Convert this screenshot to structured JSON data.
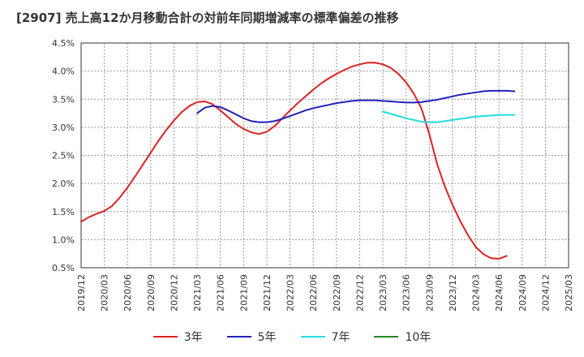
{
  "chart_data": {
    "type": "line",
    "title": "[2907]  売上高12か月移動合計の対前年同期増減率の標準偏差の推移",
    "xlabel": "",
    "ylabel": "",
    "ylim": [
      0.5,
      4.5
    ],
    "y_ticks": [
      "0.5%",
      "1.0%",
      "1.5%",
      "2.0%",
      "2.5%",
      "3.0%",
      "3.5%",
      "4.0%",
      "4.5%"
    ],
    "y_tick_values": [
      0.5,
      1.0,
      1.5,
      2.0,
      2.5,
      3.0,
      3.5,
      4.0,
      4.5
    ],
    "x_ticks": [
      "2019/12",
      "2020/03",
      "2020/06",
      "2020/09",
      "2020/12",
      "2021/03",
      "2021/06",
      "2021/09",
      "2021/12",
      "2022/03",
      "2022/06",
      "2022/09",
      "2022/12",
      "2023/03",
      "2023/06",
      "2023/09",
      "2023/12",
      "2024/03",
      "2024/06",
      "2024/09",
      "2024/12",
      "2025/03"
    ],
    "grid": true,
    "legend_position": "bottom",
    "series": [
      {
        "name": "3年",
        "color": "#dd2222",
        "x_start_month": 0,
        "values": [
          1.32,
          1.4,
          1.46,
          1.51,
          1.6,
          1.75,
          1.93,
          2.13,
          2.34,
          2.55,
          2.76,
          2.95,
          3.12,
          3.27,
          3.38,
          3.45,
          3.46,
          3.41,
          3.3,
          3.18,
          3.06,
          2.97,
          2.91,
          2.88,
          2.92,
          3.02,
          3.16,
          3.3,
          3.43,
          3.55,
          3.67,
          3.78,
          3.87,
          3.95,
          4.02,
          4.08,
          4.12,
          4.15,
          4.15,
          4.12,
          4.06,
          3.95,
          3.8,
          3.6,
          3.33,
          2.88,
          2.35,
          1.95,
          1.62,
          1.33,
          1.08,
          0.87,
          0.74,
          0.67,
          0.66,
          0.71
        ]
      },
      {
        "name": "5年",
        "color": "#2222bb",
        "x_start_month": 15,
        "values": [
          3.25,
          3.35,
          3.38,
          3.36,
          3.3,
          3.23,
          3.16,
          3.11,
          3.09,
          3.09,
          3.11,
          3.15,
          3.2,
          3.25,
          3.3,
          3.34,
          3.37,
          3.4,
          3.43,
          3.45,
          3.47,
          3.48,
          3.48,
          3.48,
          3.47,
          3.46,
          3.45,
          3.44,
          3.44,
          3.45,
          3.47,
          3.49,
          3.52,
          3.55,
          3.58,
          3.6,
          3.62,
          3.64,
          3.65,
          3.65,
          3.65,
          3.64
        ]
      },
      {
        "name": "7年",
        "color": "#22dddd",
        "x_start_month": 39,
        "values": [
          3.28,
          3.24,
          3.2,
          3.16,
          3.13,
          3.1,
          3.09,
          3.09,
          3.11,
          3.13,
          3.15,
          3.17,
          3.19,
          3.2,
          3.21,
          3.22,
          3.22,
          3.22
        ]
      },
      {
        "name": "10年",
        "color": "#228822",
        "x_start_month": 0,
        "values": []
      }
    ]
  }
}
